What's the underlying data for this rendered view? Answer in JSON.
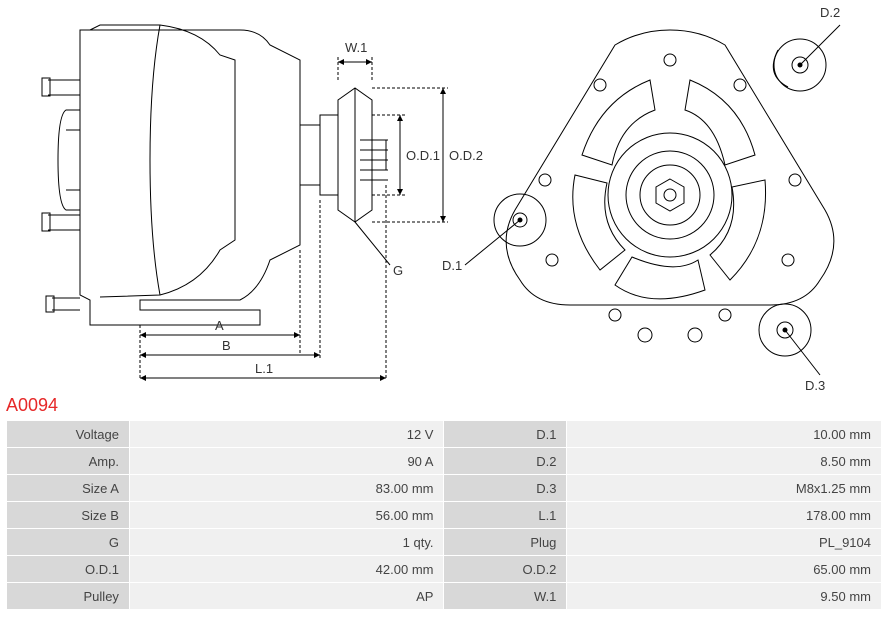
{
  "part_id": "A0094",
  "diagram": {
    "type": "technical-drawing",
    "stroke_color": "#000000",
    "stroke_width": 1,
    "text_color": "#333333",
    "label_fontsize": 13,
    "side_view": {
      "labels": {
        "w1": "W.1",
        "od1": "O.D.1",
        "od2": "O.D.2",
        "g": "G",
        "a": "A",
        "b": "B",
        "l1": "L.1"
      }
    },
    "front_view": {
      "labels": {
        "d1": "D.1",
        "d2": "D.2",
        "d3": "D.3"
      }
    }
  },
  "specs": {
    "rows": [
      {
        "l1": "Voltage",
        "v1": "12 V",
        "l2": "D.1",
        "v2": "10.00 mm"
      },
      {
        "l1": "Amp.",
        "v1": "90 A",
        "l2": "D.2",
        "v2": "8.50 mm"
      },
      {
        "l1": "Size A",
        "v1": "83.00 mm",
        "l2": "D.3",
        "v2": "M8x1.25 mm"
      },
      {
        "l1": "Size B",
        "v1": "56.00 mm",
        "l2": "L.1",
        "v2": "178.00 mm"
      },
      {
        "l1": "G",
        "v1": "1 qty.",
        "l2": "Plug",
        "v2": "PL_9104"
      },
      {
        "l1": "O.D.1",
        "v1": "42.00 mm",
        "l2": "O.D.2",
        "v2": "65.00 mm"
      },
      {
        "l1": "Pulley",
        "v1": "AP",
        "l2": "W.1",
        "v2": "9.50 mm"
      }
    ],
    "label_bg": "#d8d8d8",
    "value_bg": "#f0f0f0",
    "text_color": "#444444",
    "fontsize": 13
  }
}
